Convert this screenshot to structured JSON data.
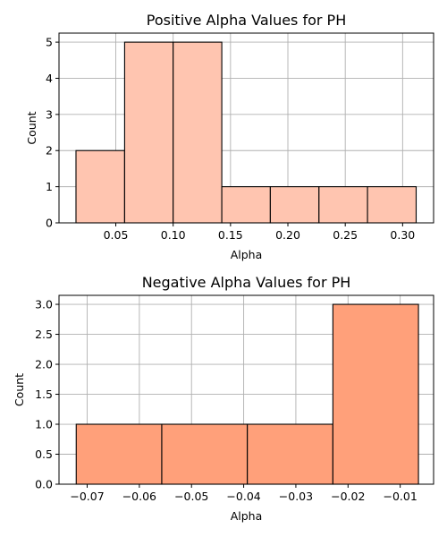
{
  "chart_data": [
    {
      "type": "histogram",
      "title": "Positive Alpha Values for PH",
      "xlabel": "Alpha",
      "ylabel": "Count",
      "bar_color": "#FFC5B0",
      "grid": true,
      "xlim": [
        0.0005,
        0.327
      ],
      "ylim": [
        0,
        5.25
      ],
      "xticks": [
        0.05,
        0.1,
        0.15,
        0.2,
        0.25,
        0.3
      ],
      "xtick_labels": [
        "0.05",
        "0.10",
        "0.15",
        "0.20",
        "0.25",
        "0.30"
      ],
      "yticks": [
        0,
        1,
        2,
        3,
        4,
        5
      ],
      "ytick_labels": [
        "0",
        "1",
        "2",
        "3",
        "4",
        "5"
      ],
      "bins": [
        {
          "x0": 0.0153,
          "x1": 0.0577,
          "count": 2
        },
        {
          "x0": 0.0577,
          "x1": 0.1,
          "count": 5
        },
        {
          "x0": 0.1,
          "x1": 0.1424,
          "count": 5
        },
        {
          "x0": 0.1424,
          "x1": 0.1847,
          "count": 1
        },
        {
          "x0": 0.1847,
          "x1": 0.2271,
          "count": 1
        },
        {
          "x0": 0.2271,
          "x1": 0.2694,
          "count": 1
        },
        {
          "x0": 0.2694,
          "x1": 0.3118,
          "count": 1
        }
      ]
    },
    {
      "type": "histogram",
      "title": "Negative Alpha Values for PH",
      "xlabel": "Alpha",
      "ylabel": "Count",
      "bar_color": "#FFA07A",
      "grid": true,
      "xlim": [
        -0.0754,
        -0.0036
      ],
      "ylim": [
        0,
        3.15
      ],
      "xticks": [
        -0.07,
        -0.06,
        -0.05,
        -0.04,
        -0.03,
        -0.02,
        -0.01
      ],
      "xtick_labels": [
        "−0.07",
        "−0.06",
        "−0.05",
        "−0.04",
        "−0.03",
        "−0.02",
        "−0.01"
      ],
      "yticks": [
        0,
        0.5,
        1.0,
        1.5,
        2.0,
        2.5,
        3.0
      ],
      "ytick_labels": [
        "0.0",
        "0.5",
        "1.0",
        "1.5",
        "2.0",
        "2.5",
        "3.0"
      ],
      "bins": [
        {
          "x0": -0.0721,
          "x1": -0.0557,
          "count": 1
        },
        {
          "x0": -0.0557,
          "x1": -0.0393,
          "count": 1
        },
        {
          "x0": -0.0393,
          "x1": -0.0229,
          "count": 1
        },
        {
          "x0": -0.0229,
          "x1": -0.0065,
          "count": 3
        }
      ]
    }
  ]
}
